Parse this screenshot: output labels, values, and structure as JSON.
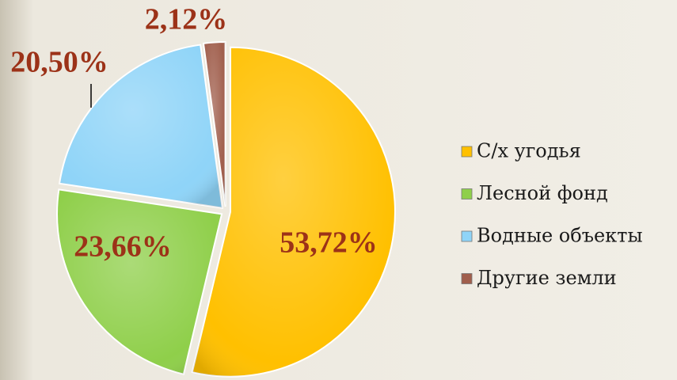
{
  "chart_data": {
    "type": "pie",
    "categories": [
      "С/х угодья",
      "Лесной фонд",
      "Водные объекты",
      "Другие  земли"
    ],
    "values": [
      53.72,
      23.66,
      20.5,
      2.12
    ],
    "value_labels": [
      "53,72%",
      "23,66%",
      "20,50%",
      "2,12%"
    ],
    "colors": [
      "#ffc000",
      "#8fcf4a",
      "#8fd4f8",
      "#a05e4c"
    ]
  }
}
